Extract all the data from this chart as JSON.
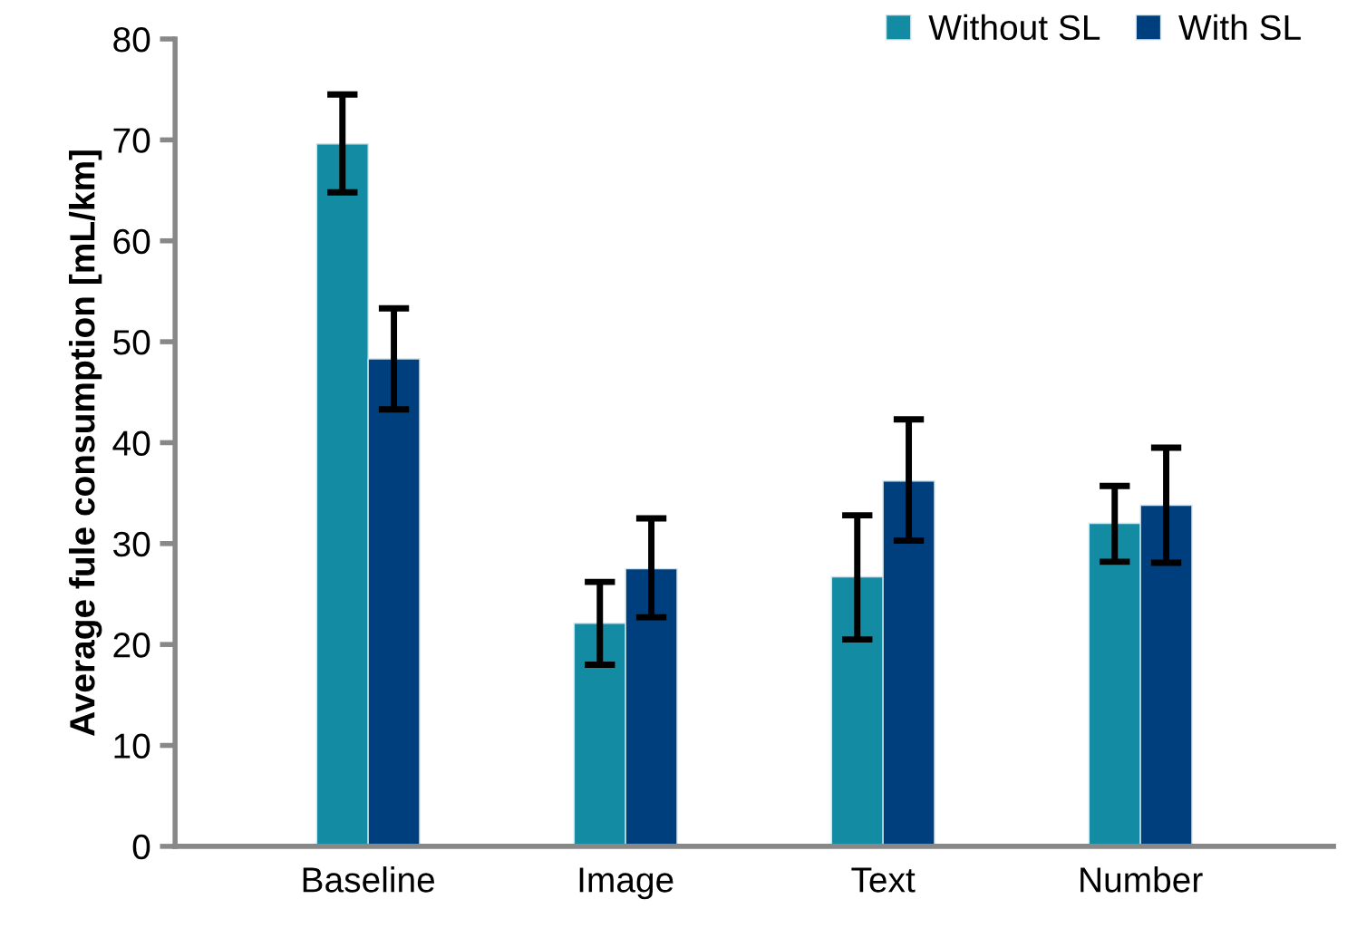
{
  "chart_data": {
    "type": "bar",
    "ylabel": "Average fule consumption [mL/km]",
    "categories": [
      "Baseline",
      "Image",
      "Text",
      "Number"
    ],
    "series": [
      {
        "name": "Without SL",
        "color": "#138ba3",
        "values": [
          69.6,
          22.1,
          26.7,
          32.0
        ],
        "errors": [
          [
            64.8,
            74.5
          ],
          [
            18.0,
            26.2
          ],
          [
            20.5,
            32.8
          ],
          [
            28.2,
            35.7
          ]
        ]
      },
      {
        "name": "With SL",
        "color": "#003f7d",
        "values": [
          48.3,
          27.5,
          36.2,
          33.8
        ],
        "errors": [
          [
            43.3,
            53.3
          ],
          [
            22.7,
            32.5
          ],
          [
            30.3,
            42.3
          ],
          [
            28.1,
            39.5
          ]
        ]
      }
    ],
    "ylim": [
      0,
      80
    ],
    "yticks": [
      0,
      10,
      20,
      30,
      40,
      50,
      60,
      70,
      80
    ],
    "grid": false,
    "legend": "top right"
  }
}
